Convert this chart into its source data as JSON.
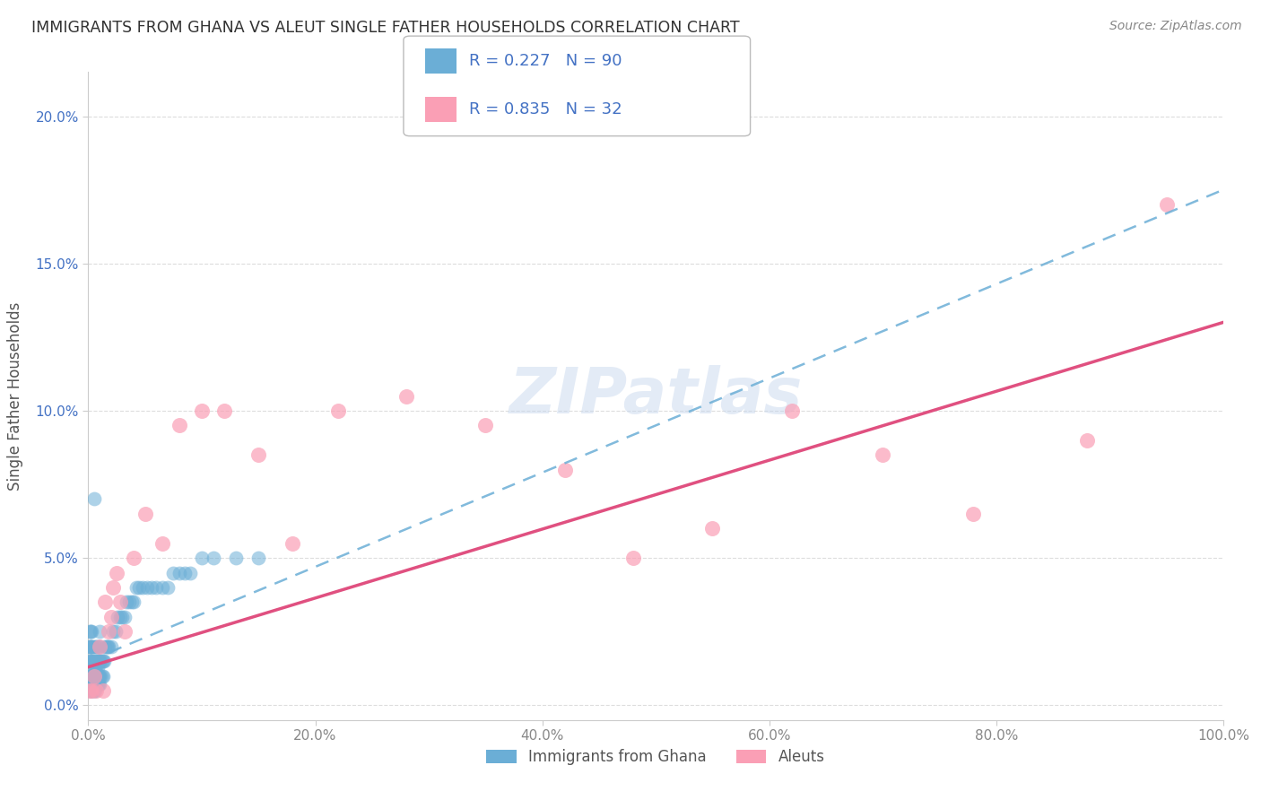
{
  "title": "IMMIGRANTS FROM GHANA VS ALEUT SINGLE FATHER HOUSEHOLDS CORRELATION CHART",
  "source": "Source: ZipAtlas.com",
  "ylabel": "Single Father Households",
  "legend_label1": "Immigrants from Ghana",
  "legend_label2": "Aleuts",
  "color_ghana": "#6baed6",
  "color_aleut": "#fa9fb5",
  "color_line_ghana": "#6baed6",
  "color_line_aleut": "#e05080",
  "xlim": [
    0.0,
    1.0
  ],
  "ylim": [
    -0.005,
    0.215
  ],
  "xticks": [
    0.0,
    0.2,
    0.4,
    0.6,
    0.8,
    1.0
  ],
  "xtick_labels": [
    "0.0%",
    "20.0%",
    "40.0%",
    "60.0%",
    "80.0%",
    "100.0%"
  ],
  "yticks": [
    0.0,
    0.05,
    0.1,
    0.15,
    0.2
  ],
  "ytick_labels": [
    "0.0%",
    "5.0%",
    "10.0%",
    "15.0%",
    "20.0%"
  ],
  "ghana_x": [
    0.001,
    0.001,
    0.001,
    0.001,
    0.001,
    0.001,
    0.001,
    0.002,
    0.002,
    0.002,
    0.002,
    0.002,
    0.002,
    0.003,
    0.003,
    0.003,
    0.003,
    0.003,
    0.003,
    0.004,
    0.004,
    0.004,
    0.004,
    0.005,
    0.005,
    0.005,
    0.005,
    0.005,
    0.005,
    0.006,
    0.006,
    0.006,
    0.006,
    0.006,
    0.006,
    0.007,
    0.007,
    0.007,
    0.007,
    0.008,
    0.008,
    0.008,
    0.008,
    0.008,
    0.009,
    0.009,
    0.009,
    0.01,
    0.01,
    0.01,
    0.01,
    0.01,
    0.011,
    0.011,
    0.012,
    0.012,
    0.013,
    0.013,
    0.014,
    0.015,
    0.016,
    0.017,
    0.018,
    0.02,
    0.022,
    0.024,
    0.026,
    0.028,
    0.03,
    0.032,
    0.034,
    0.036,
    0.038,
    0.04,
    0.042,
    0.045,
    0.048,
    0.052,
    0.056,
    0.06,
    0.065,
    0.07,
    0.075,
    0.08,
    0.085,
    0.09,
    0.1,
    0.11,
    0.13,
    0.15
  ],
  "ghana_y": [
    0.005,
    0.01,
    0.01,
    0.015,
    0.02,
    0.02,
    0.025,
    0.005,
    0.01,
    0.01,
    0.015,
    0.02,
    0.025,
    0.005,
    0.01,
    0.01,
    0.015,
    0.02,
    0.025,
    0.005,
    0.01,
    0.015,
    0.02,
    0.005,
    0.007,
    0.01,
    0.012,
    0.015,
    0.07,
    0.005,
    0.007,
    0.01,
    0.013,
    0.015,
    0.02,
    0.007,
    0.01,
    0.013,
    0.02,
    0.007,
    0.01,
    0.013,
    0.015,
    0.02,
    0.007,
    0.01,
    0.015,
    0.007,
    0.01,
    0.015,
    0.02,
    0.025,
    0.01,
    0.015,
    0.01,
    0.015,
    0.01,
    0.015,
    0.015,
    0.02,
    0.02,
    0.02,
    0.02,
    0.02,
    0.025,
    0.025,
    0.03,
    0.03,
    0.03,
    0.03,
    0.035,
    0.035,
    0.035,
    0.035,
    0.04,
    0.04,
    0.04,
    0.04,
    0.04,
    0.04,
    0.04,
    0.04,
    0.045,
    0.045,
    0.045,
    0.045,
    0.05,
    0.05,
    0.05,
    0.05
  ],
  "aleut_x": [
    0.001,
    0.003,
    0.005,
    0.007,
    0.01,
    0.013,
    0.015,
    0.018,
    0.02,
    0.022,
    0.025,
    0.028,
    0.032,
    0.04,
    0.05,
    0.065,
    0.08,
    0.1,
    0.12,
    0.15,
    0.18,
    0.22,
    0.28,
    0.35,
    0.42,
    0.48,
    0.55,
    0.62,
    0.7,
    0.78,
    0.88,
    0.95
  ],
  "aleut_y": [
    0.005,
    0.005,
    0.01,
    0.005,
    0.02,
    0.005,
    0.035,
    0.025,
    0.03,
    0.04,
    0.045,
    0.035,
    0.025,
    0.05,
    0.065,
    0.055,
    0.095,
    0.1,
    0.1,
    0.085,
    0.055,
    0.1,
    0.105,
    0.095,
    0.08,
    0.05,
    0.06,
    0.1,
    0.085,
    0.065,
    0.09,
    0.17
  ],
  "line_ghana_x0": 0.0,
  "line_ghana_y0": 0.015,
  "line_ghana_x1": 1.0,
  "line_ghana_y1": 0.175,
  "line_aleut_x0": 0.0,
  "line_aleut_y0": 0.013,
  "line_aleut_x1": 1.0,
  "line_aleut_y1": 0.13,
  "watermark_text": "ZIPatlas",
  "background_color": "#ffffff",
  "grid_color": "#dddddd",
  "ytick_color": "#4472c4",
  "xtick_color": "#888888",
  "title_color": "#333333",
  "source_color": "#888888",
  "ylabel_color": "#555555"
}
